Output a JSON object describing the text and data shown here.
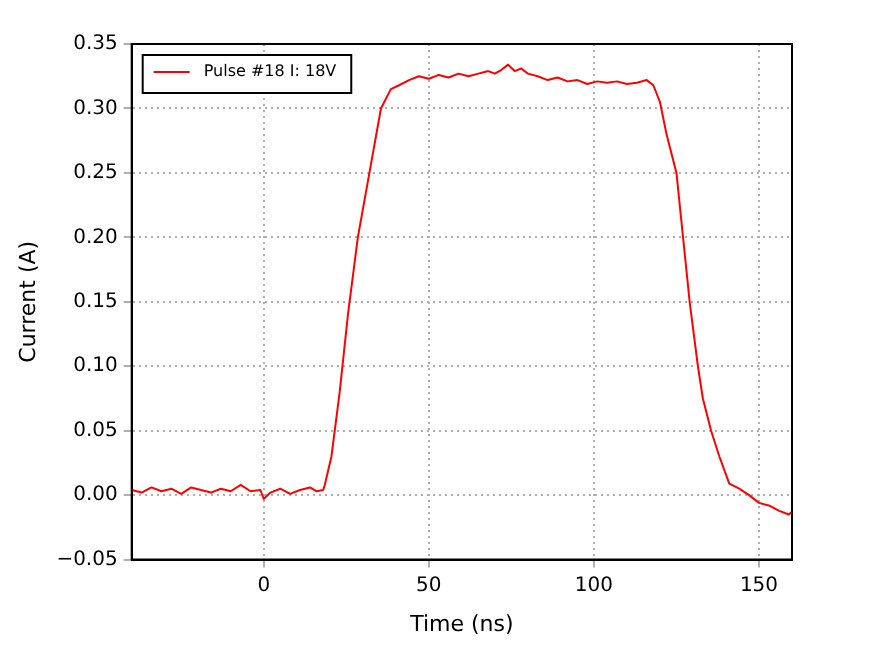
{
  "chart_data": {
    "type": "line",
    "xlabel": "Time (ns)",
    "ylabel": "Current (A)",
    "series": [
      {
        "name": "Pulse #18 I: 18V",
        "color": "#ff0000",
        "x": [
          -40,
          -37,
          -34,
          -31,
          -28,
          -25,
          -22,
          -19,
          -16,
          -13,
          -10,
          -7,
          -4,
          -1,
          0,
          2,
          5,
          8,
          11,
          14,
          16,
          18,
          18.5,
          20.5,
          23,
          25.5,
          28.5,
          32,
          35.5,
          38.5,
          41,
          44,
          47,
          50,
          53,
          56,
          59,
          62,
          65,
          68,
          70,
          72,
          74,
          76,
          78,
          80,
          83,
          86,
          89,
          92,
          95,
          98,
          101,
          104,
          107,
          110,
          113,
          116,
          118,
          120,
          122,
          125,
          127,
          129,
          131.5,
          133,
          135.5,
          138,
          141,
          144,
          147,
          150,
          153,
          156,
          159,
          160
        ],
        "values": [
          0.004,
          0.002,
          0.006,
          0.003,
          0.005,
          0.001,
          0.006,
          0.004,
          0.002,
          0.005,
          0.003,
          0.008,
          0.003,
          0.004,
          -0.003,
          0.002,
          0.005,
          0.001,
          0.004,
          0.006,
          0.003,
          0.004,
          0.008,
          0.03,
          0.08,
          0.14,
          0.2,
          0.25,
          0.3,
          0.315,
          0.318,
          0.322,
          0.325,
          0.323,
          0.326,
          0.324,
          0.327,
          0.325,
          0.327,
          0.329,
          0.327,
          0.33,
          0.334,
          0.329,
          0.331,
          0.327,
          0.325,
          0.322,
          0.324,
          0.321,
          0.322,
          0.319,
          0.321,
          0.32,
          0.321,
          0.319,
          0.32,
          0.322,
          0.318,
          0.305,
          0.28,
          0.25,
          0.2,
          0.15,
          0.1,
          0.075,
          0.05,
          0.03,
          0.009,
          0.005,
          0.0,
          -0.006,
          -0.008,
          -0.012,
          -0.015,
          -0.013
        ]
      }
    ],
    "xlim": [
      -40,
      160
    ],
    "xticks": [
      0,
      50,
      100,
      150
    ],
    "ylim": [
      -0.05,
      0.35
    ],
    "yticks": [
      {
        "value": -0.05,
        "label": "−0.05"
      },
      {
        "value": 0,
        "label": "0.00"
      },
      0.05,
      {
        "value": 0.1,
        "label": "0.10"
      },
      0.15,
      {
        "value": 0.2,
        "label": "0.20"
      },
      0.25,
      {
        "value": 0.3,
        "label": "0.30"
      },
      0.35
    ],
    "grid": true,
    "legend": "top left",
    "marker": "none",
    "line_style": "solid"
  }
}
